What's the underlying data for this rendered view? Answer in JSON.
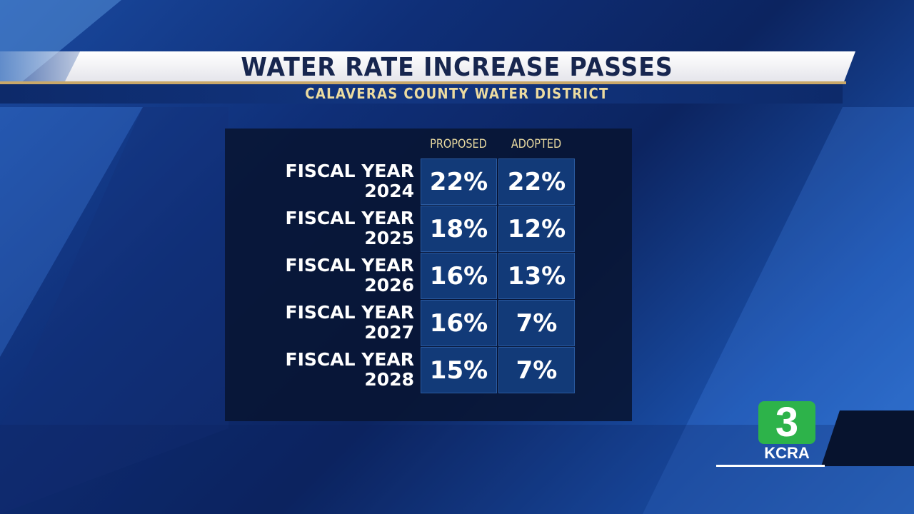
{
  "headline": "WATER RATE INCREASE PASSES",
  "subheadline": "CALAVERAS COUNTY WATER DISTRICT",
  "table": {
    "columns": [
      "PROPOSED",
      "ADOPTED"
    ],
    "rows": [
      {
        "label1": "FISCAL YEAR",
        "label2": "2024",
        "proposed": "22%",
        "adopted": "22%"
      },
      {
        "label1": "FISCAL YEAR",
        "label2": "2025",
        "proposed": "18%",
        "adopted": "12%"
      },
      {
        "label1": "FISCAL YEAR",
        "label2": "2026",
        "proposed": "16%",
        "adopted": "13%"
      },
      {
        "label1": "FISCAL YEAR",
        "label2": "2027",
        "proposed": "16%",
        "adopted": "7%"
      },
      {
        "label1": "FISCAL YEAR",
        "label2": "2028",
        "proposed": "15%",
        "adopted": "7%"
      }
    ]
  },
  "logo": {
    "number": "3",
    "name": "KCRA",
    "color": "#2db34a"
  }
}
